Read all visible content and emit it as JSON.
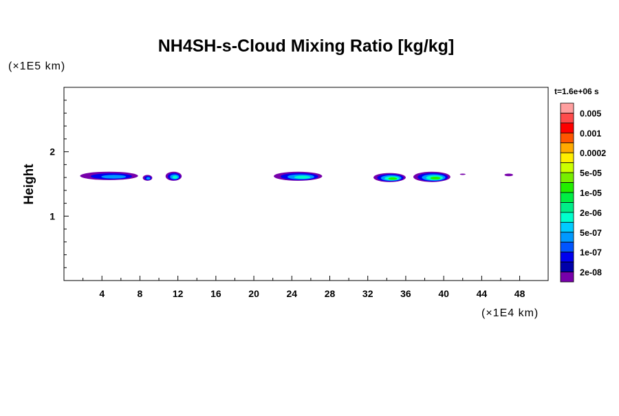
{
  "chart_data": {
    "type": "heatmap",
    "title": "NH4SH-s-Cloud Mixing Ratio [kg/kg]",
    "ylabel": "Height",
    "y_unit": "(×1E5 km)",
    "x_unit": "(×1E4 km)",
    "time_label": "t=1.6e+06 s",
    "xlim": [
      0,
      51
    ],
    "ylim": [
      0,
      3
    ],
    "x_ticks": [
      4,
      8,
      12,
      16,
      20,
      24,
      28,
      32,
      36,
      40,
      44,
      48
    ],
    "y_ticks": [
      1,
      2
    ],
    "colorbar": {
      "colors": [
        "#ff9f9f",
        "#ff4b4b",
        "#ff0000",
        "#ff5500",
        "#ffaa00",
        "#ffee00",
        "#ccff00",
        "#77ee00",
        "#22ee00",
        "#00ee44",
        "#00ee88",
        "#00ffcc",
        "#00ccff",
        "#0099ff",
        "#0055ff",
        "#0000ee",
        "#0000aa",
        "#7700aa"
      ],
      "labels": [
        "0.005",
        "0.001",
        "0.0002",
        "5e-05",
        "1e-05",
        "2e-06",
        "5e-07",
        "1e-07",
        "2e-08"
      ]
    },
    "cloud_regions": [
      {
        "x": [
          1.7,
          7.8
        ],
        "y": [
          1.56,
          1.69
        ],
        "peak": "5e-07"
      },
      {
        "x": [
          8.3,
          9.3
        ],
        "y": [
          1.55,
          1.64
        ],
        "peak": "5e-07"
      },
      {
        "x": [
          10.7,
          12.4
        ],
        "y": [
          1.55,
          1.69
        ],
        "peak": "2e-06"
      },
      {
        "x": [
          22.1,
          27.2
        ],
        "y": [
          1.55,
          1.69
        ],
        "peak": "2e-06"
      },
      {
        "x": [
          32.6,
          36.0
        ],
        "y": [
          1.53,
          1.67
        ],
        "peak": "1e-05"
      },
      {
        "x": [
          36.8,
          40.7
        ],
        "y": [
          1.53,
          1.69
        ],
        "peak": "1e-05"
      },
      {
        "x": [
          41.7,
          42.3
        ],
        "y": [
          1.64,
          1.66
        ],
        "peak": "2e-08"
      },
      {
        "x": [
          46.4,
          47.3
        ],
        "y": [
          1.62,
          1.66
        ],
        "peak": "2e-08"
      }
    ]
  }
}
